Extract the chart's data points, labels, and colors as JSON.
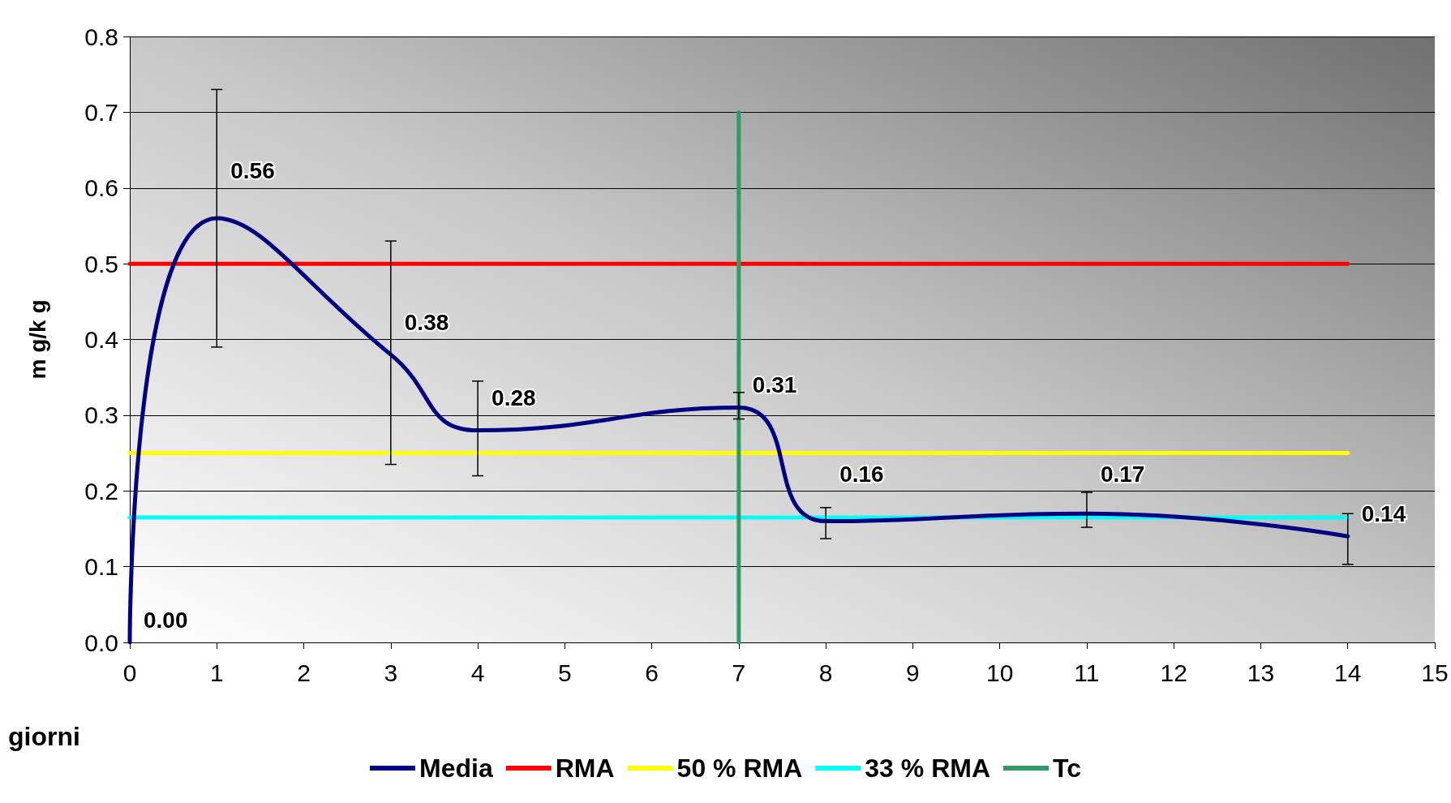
{
  "chart_data": {
    "type": "line",
    "xlabel": "giorni",
    "ylabel": "m g/k g",
    "xlim": [
      0,
      15
    ],
    "xticks": [
      0,
      1,
      2,
      3,
      4,
      5,
      6,
      7,
      8,
      9,
      10,
      11,
      12,
      13,
      14,
      15
    ],
    "ylim": [
      0,
      0.8
    ],
    "yticks": [
      {
        "value": 0,
        "label": "0.0"
      },
      0.1,
      0.2,
      0.3,
      0.4,
      0.5,
      0.6,
      0.7,
      0.8
    ],
    "grid": "y",
    "legend": "bottom",
    "marker": "none",
    "line_style": "solid",
    "series": [
      {
        "name": "Media",
        "color": "#000080",
        "x": [
          0,
          1,
          3,
          4,
          7,
          8,
          11,
          14
        ],
        "values": [
          0,
          0.56,
          0.38,
          0.28,
          0.31,
          0.16,
          0.17,
          0.14
        ],
        "errors": [
          null,
          [
            0.39,
            0.73
          ],
          [
            0.235,
            0.53
          ],
          [
            0.22,
            0.345
          ],
          [
            0.295,
            0.33
          ],
          [
            0.137,
            0.178
          ],
          [
            0.152,
            0.198
          ],
          [
            0.103,
            0.17
          ]
        ],
        "value_labels": [
          "0.00",
          "0.56",
          "0.38",
          "0.28",
          "0.31",
          "0.16",
          "0.17",
          "0.14"
        ]
      },
      {
        "name": "RMA",
        "color": "#ff0000",
        "x": [
          0,
          14
        ],
        "values": [
          0.5,
          0.5
        ]
      },
      {
        "name": "50 % RMA",
        "color": "#ffff00",
        "x": [
          0,
          14
        ],
        "values": [
          0.25,
          0.25
        ]
      },
      {
        "name": "33 % RMA",
        "color": "#00ffff",
        "x": [
          0,
          14
        ],
        "values": [
          0.165,
          0.165
        ]
      },
      {
        "name": "Tc",
        "color": "#339966",
        "x": [
          7,
          7
        ],
        "values": [
          0,
          0.7
        ]
      }
    ]
  }
}
